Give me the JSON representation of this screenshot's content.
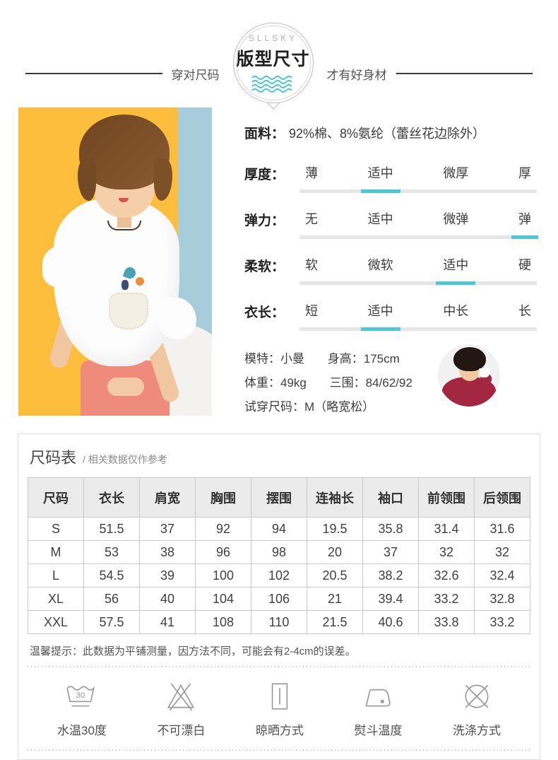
{
  "colors": {
    "accent_teal": "#4cc7d4",
    "photo_yellow": "#fcbe3c",
    "photo_blue": "#a7ccda",
    "skirt_pink": "#ee8b7a",
    "sweater_red": "#a32740"
  },
  "header": {
    "brand": "SLLSKY",
    "badge_title": "版型尺寸",
    "tagline_left": "穿对尺码",
    "tagline_right": "才有好身材"
  },
  "product": {
    "fabric_label": "面料：",
    "fabric_value": "92%棉、8%氨纶（蕾丝花边除外）",
    "attributes": [
      {
        "label": "厚度：",
        "options": [
          "薄",
          "适中",
          "微厚",
          "厚"
        ],
        "selected": 1
      },
      {
        "label": "弹力：",
        "options": [
          "无",
          "适中",
          "微弹",
          "弹"
        ],
        "selected": 3
      },
      {
        "label": "柔软：",
        "options": [
          "软",
          "微软",
          "适中",
          "硬"
        ],
        "selected": 2
      },
      {
        "label": "衣长：",
        "options": [
          "短",
          "适中",
          "中长",
          "长"
        ],
        "selected": 1
      }
    ],
    "model": {
      "name_label": "模特：",
      "name": "小曼",
      "height_label": "身高：",
      "height": "175cm",
      "weight_label": "体重：",
      "weight": "49kg",
      "measurements_label": "三围：",
      "measurements": "84/62/92",
      "fit_label": "试穿尺码：",
      "fit": "M（略宽松）"
    }
  },
  "size_chart": {
    "title": "尺码表",
    "subtitle": "/ 相关数据仅作参考",
    "columns": [
      "尺码",
      "衣长",
      "肩宽",
      "胸围",
      "摆围",
      "连袖长",
      "袖口",
      "前领围",
      "后领围"
    ],
    "rows": [
      [
        "S",
        "51.5",
        "37",
        "92",
        "94",
        "19.5",
        "35.8",
        "31.4",
        "31.6"
      ],
      [
        "M",
        "53",
        "38",
        "96",
        "98",
        "20",
        "37",
        "32",
        "32"
      ],
      [
        "L",
        "54.5",
        "39",
        "100",
        "102",
        "20.5",
        "38.2",
        "32.6",
        "32.4"
      ],
      [
        "XL",
        "56",
        "40",
        "104",
        "106",
        "21",
        "39.4",
        "33.2",
        "32.8"
      ],
      [
        "XXL",
        "57.5",
        "41",
        "108",
        "110",
        "21.5",
        "40.6",
        "33.8",
        "33.2"
      ]
    ],
    "tip": "温馨提示：此数据为平铺测量，因方法不同，可能会有2-4cm的误差。"
  },
  "care": {
    "items": [
      {
        "icon": "wash-30-icon",
        "icon_text": "30",
        "label": "水温30度"
      },
      {
        "icon": "no-bleach-icon",
        "label": "不可漂白"
      },
      {
        "icon": "drying-icon",
        "label": "晾晒方式"
      },
      {
        "icon": "iron-icon",
        "label": "熨斗温度"
      },
      {
        "icon": "washing-icon",
        "label": "洗涤方式"
      }
    ]
  }
}
